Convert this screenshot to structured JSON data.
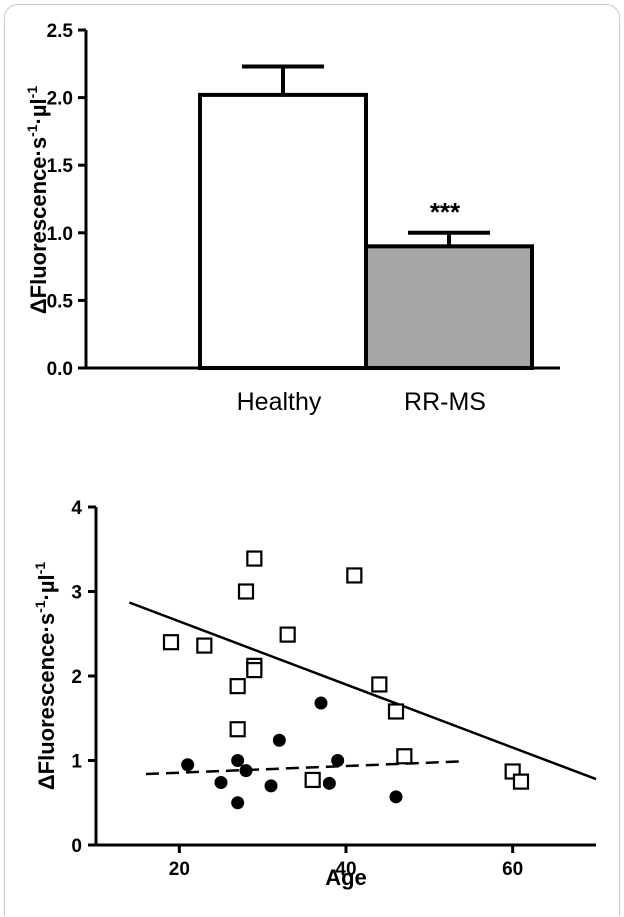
{
  "chart_data": [
    {
      "type": "bar",
      "categories": [
        "Healthy",
        "RR-MS"
      ],
      "values": [
        2.02,
        0.9
      ],
      "errors": [
        0.21,
        0.1
      ],
      "colors": [
        "#ffffff",
        "#a6a6a6"
      ],
      "ylabel": {
        "main": "ΔFluorescence·s",
        "sup1": "-1",
        "mid": "·µl",
        "sup2": "-1"
      },
      "ylim": [
        0,
        2.5
      ],
      "yticks": [
        "0.0",
        "0.5",
        "1.0",
        "1.5",
        "2.0",
        "2.5"
      ],
      "annotation": "***",
      "grid": false
    },
    {
      "type": "scatter",
      "xlabel": "Age",
      "ylabel": {
        "main": "ΔFluorescence·s",
        "sup1": "-1",
        "mid": "·µl",
        "sup2": "-1"
      },
      "xlim": [
        10,
        70
      ],
      "ylim": [
        0,
        4
      ],
      "xticks": [
        "20",
        "40",
        "60"
      ],
      "yticks": [
        "0",
        "1",
        "2",
        "3",
        "4"
      ],
      "grid": false,
      "series": [
        {
          "marker": "open-square",
          "points": [
            [
              19,
              2.4
            ],
            [
              23,
              2.36
            ],
            [
              27,
              1.88
            ],
            [
              27,
              1.37
            ],
            [
              28,
              3.0
            ],
            [
              29,
              3.39
            ],
            [
              29,
              2.12
            ],
            [
              29,
              2.07
            ],
            [
              33,
              2.49
            ],
            [
              36,
              0.77
            ],
            [
              41,
              3.19
            ],
            [
              44,
              1.9
            ],
            [
              46,
              1.58
            ],
            [
              47,
              1.05
            ],
            [
              60,
              0.87
            ],
            [
              61,
              0.75
            ]
          ],
          "trend": {
            "style": "solid",
            "x": [
              14,
              70
            ],
            "y": [
              2.87,
              0.78
            ]
          }
        },
        {
          "marker": "filled-circle",
          "points": [
            [
              21,
              0.95
            ],
            [
              25,
              0.74
            ],
            [
              27,
              1.0
            ],
            [
              27,
              0.5
            ],
            [
              28,
              0.88
            ],
            [
              31,
              0.7
            ],
            [
              32,
              1.24
            ],
            [
              37,
              1.68
            ],
            [
              38,
              0.73
            ],
            [
              39,
              1.0
            ],
            [
              46,
              0.57
            ]
          ],
          "trend": {
            "style": "dashed",
            "x": [
              16,
              54
            ],
            "y": [
              0.84,
              0.99
            ]
          }
        }
      ]
    }
  ]
}
